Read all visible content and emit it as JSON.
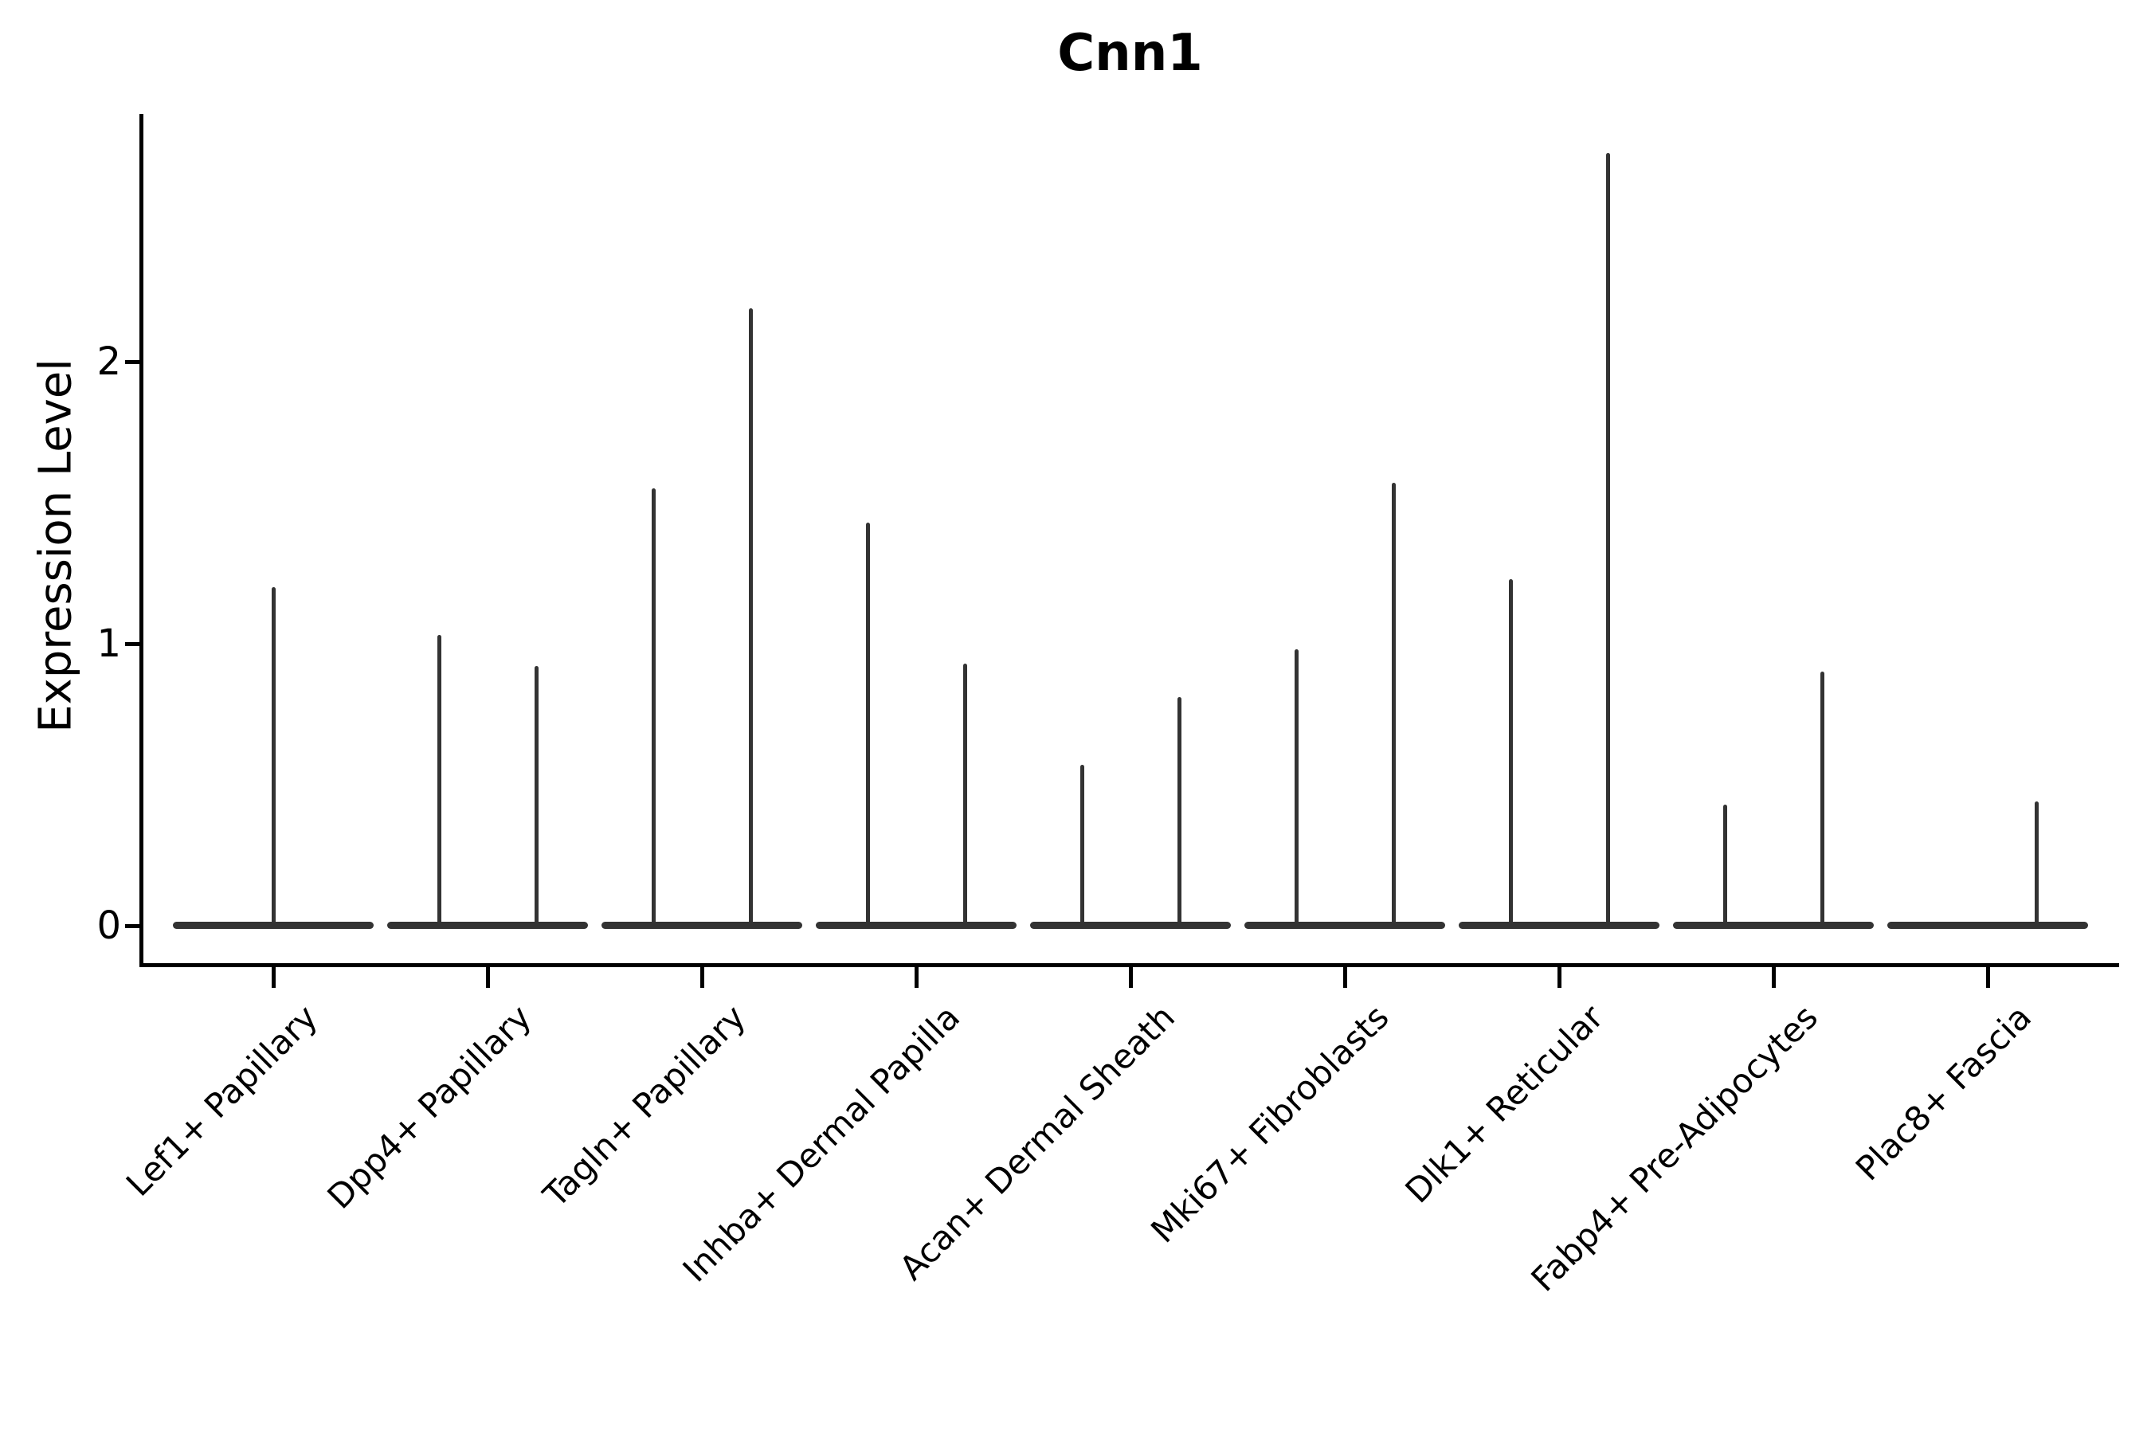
{
  "figure": {
    "background": "#ffffff"
  },
  "chart_data": {
    "type": "violin",
    "title": "Cnn1",
    "xlabel": "",
    "ylabel": "Expression Level",
    "yticks": [
      0,
      1,
      2
    ],
    "ytick_labels": [
      "0",
      "1",
      "2"
    ],
    "ylim": [
      -0.15,
      2.9
    ],
    "grid": false,
    "legend": null,
    "violin_color": "#333333",
    "axis_color": "#000000",
    "categories": [
      "Lef1+ Papillary",
      "Dpp4+ Papillary",
      "Tagln+ Papillary",
      "Inhba+ Dermal Papilla",
      "Acan+ Dermal Sheath",
      "Mki67+ Fibroblasts",
      "Dlk1+ Reticular",
      "Fabp4+ Pre-Adipocytes",
      "Plac8+ Fascia"
    ],
    "series": [
      {
        "category": "Lef1+ Papillary",
        "violins": [
          {
            "slot": "center",
            "max_expression": 1.2
          }
        ]
      },
      {
        "category": "Dpp4+ Papillary",
        "violins": [
          {
            "slot": "left",
            "max_expression": 1.03
          },
          {
            "slot": "right",
            "max_expression": 0.92
          }
        ]
      },
      {
        "category": "Tagln+ Papillary",
        "violins": [
          {
            "slot": "left",
            "max_expression": 1.55
          },
          {
            "slot": "right",
            "max_expression": 2.19
          }
        ]
      },
      {
        "category": "Inhba+ Dermal Papilla",
        "violins": [
          {
            "slot": "left",
            "max_expression": 1.43
          },
          {
            "slot": "right",
            "max_expression": 0.93
          }
        ]
      },
      {
        "category": "Acan+ Dermal Sheath",
        "violins": [
          {
            "slot": "left",
            "max_expression": 0.57
          },
          {
            "slot": "right",
            "max_expression": 0.81
          }
        ]
      },
      {
        "category": "Mki67+ Fibroblasts",
        "violins": [
          {
            "slot": "left",
            "max_expression": 0.98
          },
          {
            "slot": "right",
            "max_expression": 1.57
          }
        ]
      },
      {
        "category": "Dlk1+ Reticular",
        "violins": [
          {
            "slot": "left",
            "max_expression": 1.23
          },
          {
            "slot": "right",
            "max_expression": 2.74
          }
        ]
      },
      {
        "category": "Fabp4+ Pre-Adipocytes",
        "violins": [
          {
            "slot": "left",
            "max_expression": 0.43
          },
          {
            "slot": "right",
            "max_expression": 0.9
          }
        ]
      },
      {
        "category": "Plac8+ Fascia",
        "violins": [
          {
            "slot": "left",
            "max_expression": 0.0
          },
          {
            "slot": "right",
            "max_expression": 0.44
          }
        ]
      }
    ],
    "note": "Expression is concentrated at 0 for every population: each violin renders as a wide flat bar at y=0 with a thin vertical spike reaching its maximum expression value."
  }
}
